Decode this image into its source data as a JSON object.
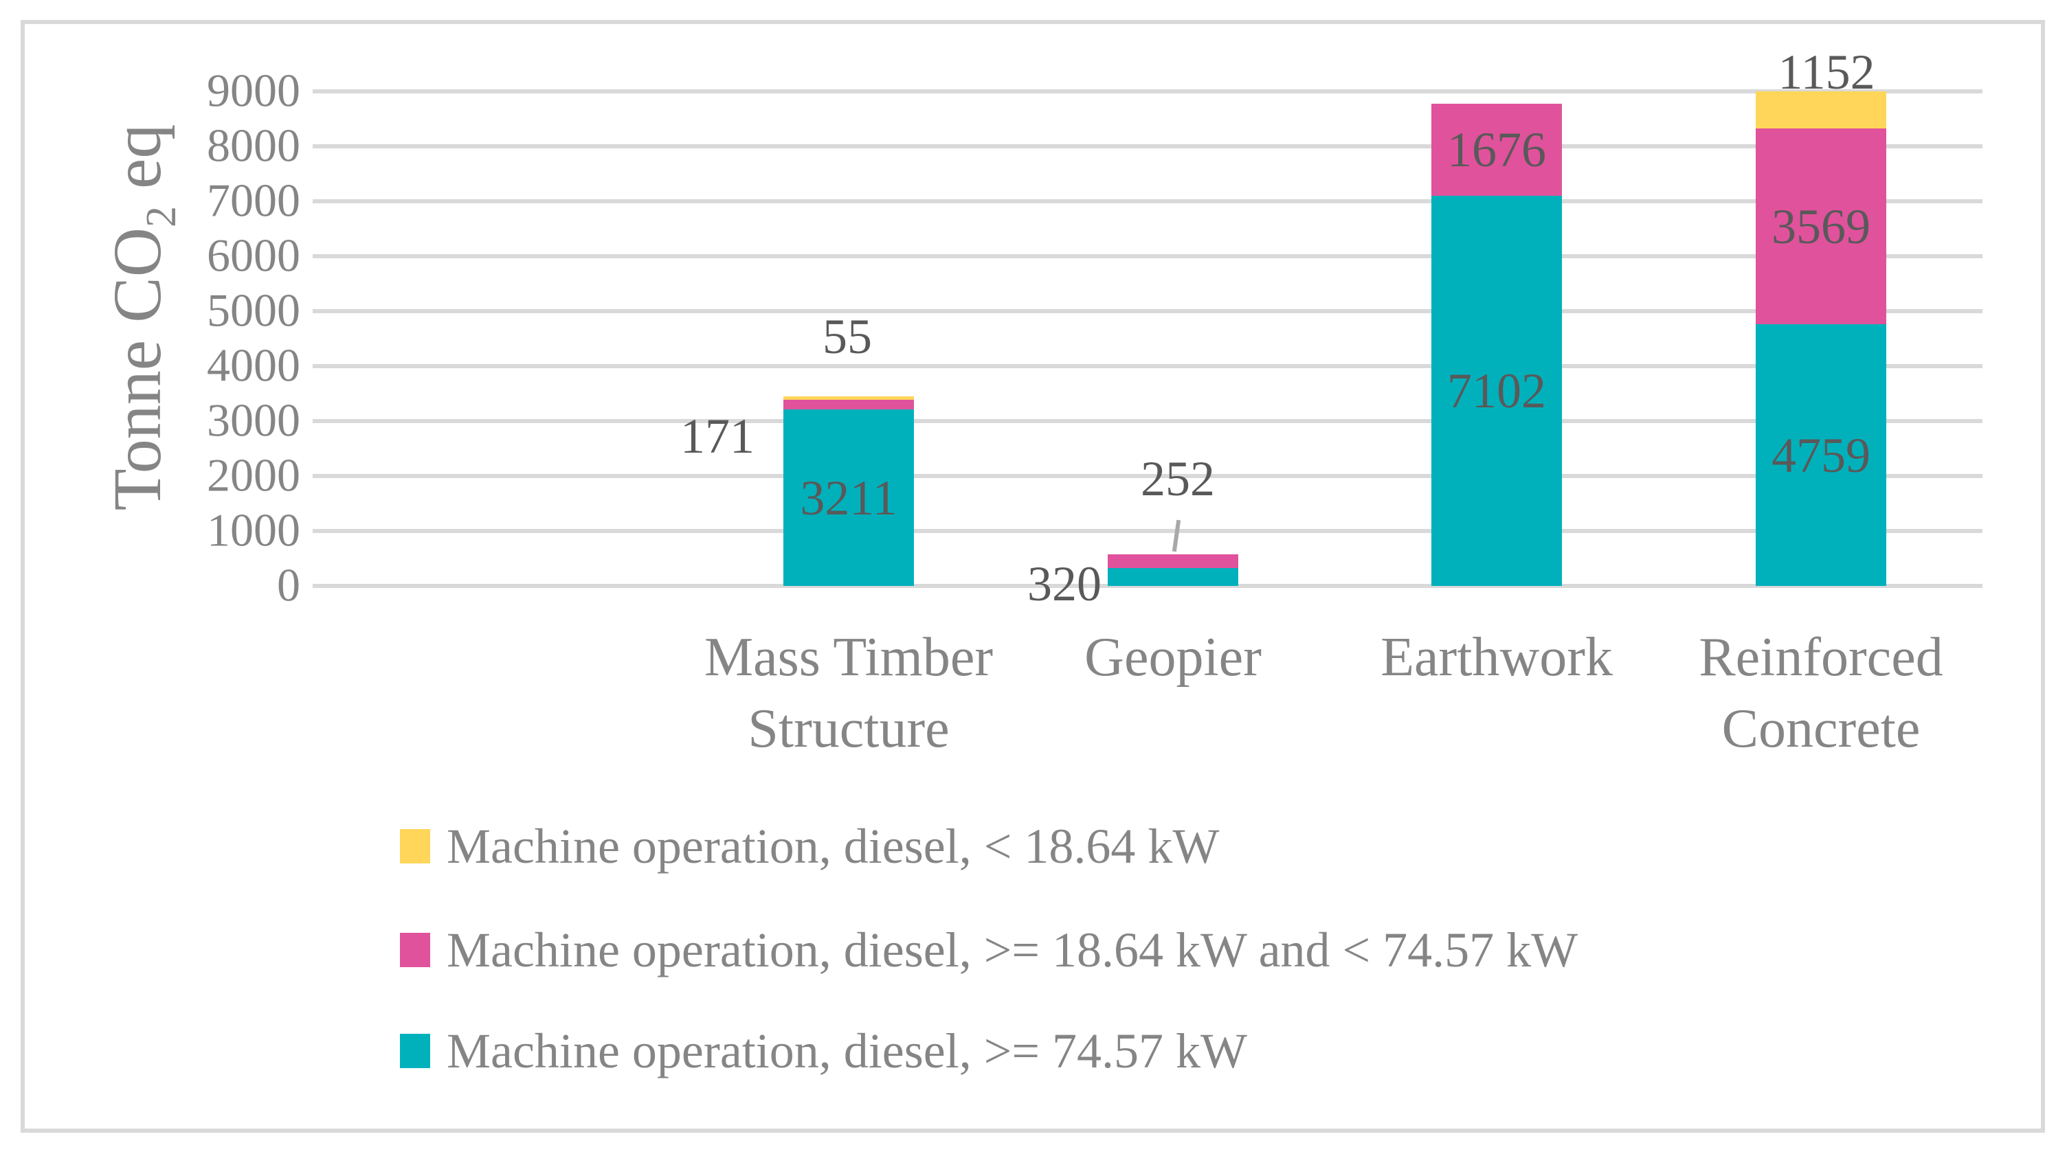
{
  "figure": {
    "background": "#FFFFFF",
    "border_color": "#D9D9D9"
  },
  "chart_data": {
    "type": "bar",
    "stacked": true,
    "title": "",
    "ylabel": "Tonne CO2 eq",
    "ylabel_parts": {
      "pre": "Tonne CO",
      "sub": "2",
      "post": " eq"
    },
    "xlabel": "",
    "ylim": [
      0,
      9000
    ],
    "ytick_step": 1000,
    "yticks": [
      "9000",
      "8000",
      "7000",
      "6000",
      "5000",
      "4000",
      "3000",
      "2000",
      "1000",
      "0"
    ],
    "grid": true,
    "legend_position": "bottom-left",
    "categories": [
      "Mass Timber Structure",
      "Geopier",
      "Earthwork",
      "Reinforced Concrete"
    ],
    "category_label_lines": [
      [
        "Mass Timber",
        "Structure"
      ],
      [
        "Geopier"
      ],
      [
        "Earthwork"
      ],
      [
        "Reinforced",
        "Concrete"
      ]
    ],
    "series": [
      {
        "name": "Machine operation, diesel, < 18.64 kW",
        "color": "#FFD65A",
        "values": [
          55,
          0,
          0,
          1152
        ],
        "labels": [
          {
            "pos": "above",
            "dx": -2,
            "dy": -87
          },
          null,
          null,
          {
            "pos": "above",
            "dx": 8,
            "dy": -28
          }
        ]
      },
      {
        "name": "Machine operation, diesel, >= 18.64 kW and < 74.57 kW",
        "color": "#E0529C",
        "values": [
          171,
          252,
          1676,
          3569
        ],
        "labels": [
          {
            "pos": "left",
            "dx": -42,
            "dy": 46
          },
          {
            "pos": "above-leader",
            "dx": 7,
            "dy": -110
          },
          {
            "pos": "inside"
          },
          {
            "pos": "inside"
          }
        ]
      },
      {
        "name": "Machine operation, diesel, >= 74.57 kW",
        "color": "#00B1BC",
        "values": [
          3211,
          320,
          7102,
          4759
        ],
        "labels": [
          {
            "pos": "inside"
          },
          {
            "pos": "left",
            "dx": -9,
            "dy": 10
          },
          {
            "pos": "inside"
          },
          {
            "pos": "inside"
          }
        ]
      }
    ],
    "colors": {
      "grid": "#D9D9D9",
      "axis_text": "#858585",
      "data_label": "#595959",
      "leader": "#A8A8A8"
    }
  }
}
